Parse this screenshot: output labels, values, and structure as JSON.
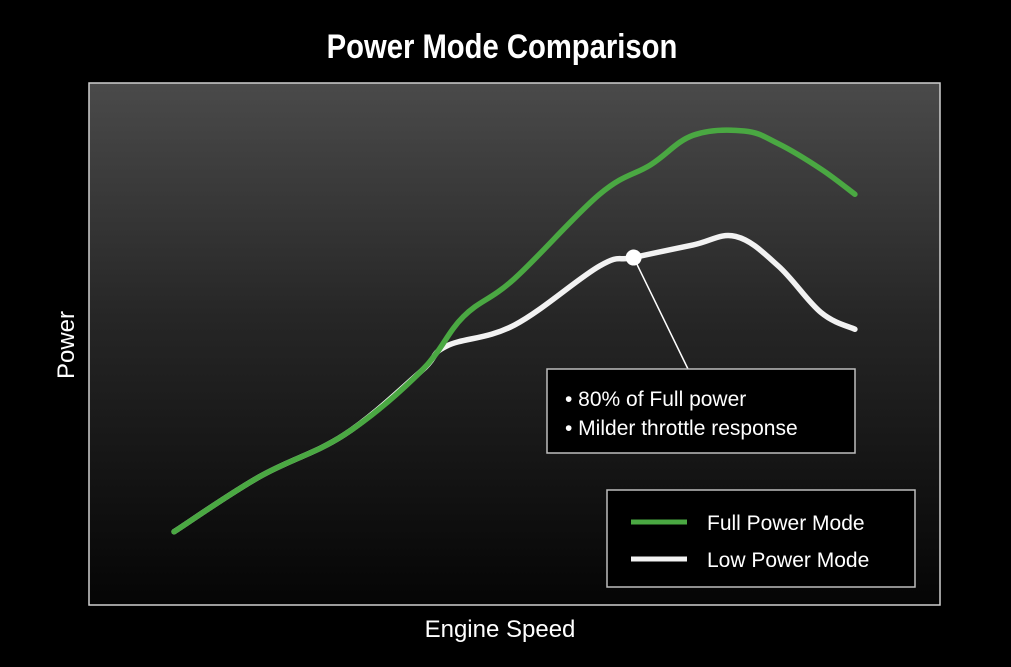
{
  "chart_data": {
    "type": "line",
    "title": "Power Mode Comparison",
    "xlabel": "Engine Speed",
    "ylabel": "Power",
    "grid": false,
    "axis_ticks": false,
    "xlim": [
      0,
      100
    ],
    "ylim": [
      0,
      100
    ],
    "legend": {
      "placement": "bottom-right"
    },
    "series": [
      {
        "name": "Full Power Mode",
        "color": "#4aa842",
        "x": [
          10,
          20,
          30,
          39,
          44,
          50,
          60,
          66,
          71,
          77,
          81,
          86,
          90
        ],
        "y": [
          5,
          18,
          28,
          43,
          56,
          65,
          85,
          92,
          99,
          100,
          97,
          91,
          85
        ]
      },
      {
        "name": "Low Power Mode",
        "color": "#f2f2f2",
        "x": [
          10,
          20,
          30,
          39,
          42,
          50,
          60,
          64,
          71,
          76,
          81,
          86,
          90
        ],
        "y": [
          5,
          18,
          28,
          43,
          49,
          54,
          68,
          70,
          73,
          75,
          68,
          57,
          53
        ]
      }
    ],
    "annotation": {
      "lines": [
        "• 80% of Full power",
        "• Milder throttle response"
      ],
      "target": {
        "series": 1,
        "x": 64,
        "y": 70
      }
    }
  }
}
